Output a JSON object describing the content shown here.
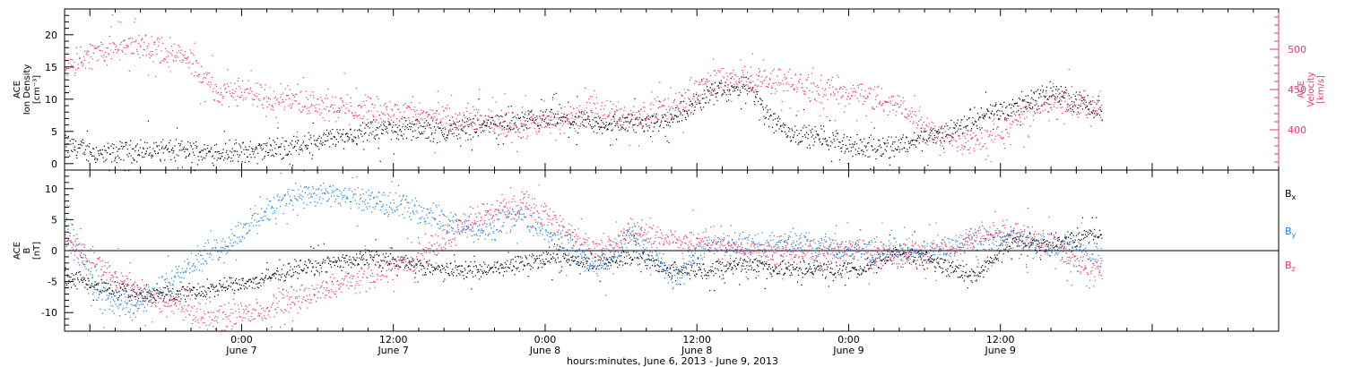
{
  "colors": {
    "black": "#000000",
    "red": "#e8386a",
    "blue": "#1a7fd8",
    "bg": "#ffffff"
  },
  "chart_data": [
    {
      "type": "scatter",
      "title": "",
      "ylabel_left": [
        "ACE",
        "Ion Density",
        "[cm⁻³]"
      ],
      "ylabel_right": [
        "ACE",
        "Velocity",
        "[km/s]"
      ],
      "ylim_left": [
        -1,
        24
      ],
      "ylim_right": [
        350,
        550
      ],
      "yticks_left": [
        0,
        5,
        10,
        15,
        20
      ],
      "yticks_right": [
        400,
        450,
        500
      ],
      "series": [
        {
          "color": "#000000",
          "axis": "left",
          "x": [
            0,
            3,
            6,
            9,
            12,
            15,
            18,
            21,
            24,
            27,
            30,
            33,
            36,
            39,
            42,
            45,
            48,
            51,
            54,
            57,
            60,
            63,
            66,
            69,
            72,
            75,
            78,
            81,
            82
          ],
          "y": [
            3,
            1.5,
            2.2,
            2,
            1.8,
            2,
            2.8,
            4,
            5,
            5.5,
            5,
            6,
            6.5,
            7,
            6,
            6.5,
            7,
            11,
            12,
            5,
            4,
            2.5,
            3,
            4.5,
            7,
            9,
            11,
            9,
            8
          ]
        },
        {
          "color": "#e8386a",
          "axis": "right",
          "x": [
            0,
            3,
            6,
            9,
            12,
            15,
            18,
            21,
            24,
            27,
            30,
            33,
            36,
            39,
            42,
            45,
            48,
            51,
            54,
            57,
            60,
            63,
            66,
            69,
            72,
            75,
            78,
            81,
            82
          ],
          "y": [
            480,
            500,
            505,
            495,
            450,
            445,
            440,
            430,
            425,
            420,
            415,
            410,
            405,
            410,
            425,
            415,
            430,
            460,
            465,
            460,
            450,
            445,
            430,
            395,
            385,
            410,
            440,
            430,
            425
          ]
        }
      ]
    },
    {
      "type": "scatter",
      "ylabel": [
        "ACE",
        "B",
        "[nT]"
      ],
      "ylim": [
        -13,
        13
      ],
      "yticks": [
        -10,
        -5,
        0,
        5,
        10
      ],
      "series": [
        {
          "name": "Bx",
          "label_main": "B",
          "label_sub": "x",
          "color": "#000000",
          "x": [
            0,
            3,
            6,
            9,
            12,
            15,
            18,
            21,
            24,
            27,
            30,
            33,
            36,
            39,
            42,
            45,
            48,
            51,
            54,
            57,
            60,
            63,
            66,
            69,
            72,
            75,
            78,
            81,
            82
          ],
          "y": [
            -4,
            -6,
            -7,
            -7,
            -6,
            -5,
            -3,
            -2,
            -1,
            -2,
            -3,
            -3,
            -2,
            -1,
            -2,
            -1,
            -3,
            -3,
            -2,
            -3,
            -3,
            -3,
            0,
            -2,
            -4,
            2,
            1,
            3,
            2
          ]
        },
        {
          "name": "By",
          "label_main": "B",
          "label_sub": "y",
          "color": "#1a7fd8",
          "x": [
            0,
            3,
            6,
            9,
            12,
            15,
            18,
            21,
            24,
            27,
            30,
            33,
            36,
            39,
            42,
            45,
            48,
            51,
            54,
            57,
            60,
            63,
            66,
            69,
            72,
            75,
            78,
            81,
            82
          ],
          "y": [
            5,
            -8,
            -9,
            -3,
            0,
            5,
            9,
            9,
            8,
            7,
            5,
            3,
            6,
            2,
            -3,
            3,
            -4,
            1,
            1,
            1,
            1,
            0,
            0,
            0,
            2,
            2,
            1,
            0,
            -2
          ]
        },
        {
          "name": "Bz",
          "label_main": "B",
          "label_sub": "z",
          "color": "#e8386a",
          "x": [
            0,
            3,
            6,
            9,
            12,
            15,
            18,
            21,
            24,
            27,
            30,
            33,
            36,
            39,
            42,
            45,
            48,
            51,
            54,
            57,
            60,
            63,
            66,
            69,
            72,
            75,
            78,
            81,
            82
          ],
          "y": [
            2,
            -3,
            -7,
            -9,
            -11,
            -10,
            -8,
            -6,
            -4,
            -2,
            2,
            6,
            8,
            4,
            0,
            3,
            2,
            1,
            0,
            0,
            0,
            0,
            -1,
            0,
            2,
            3,
            1,
            -3,
            -3
          ]
        }
      ]
    }
  ],
  "x_axis": {
    "tick_labels": [
      {
        "time": "0:00",
        "date": "June 7",
        "hours": 14
      },
      {
        "time": "12:00",
        "date": "June 7",
        "hours": 26
      },
      {
        "time": "0:00",
        "date": "June 8",
        "hours": 38
      },
      {
        "time": "12:00",
        "date": "June 8",
        "hours": 50
      },
      {
        "time": "0:00",
        "date": "June 9",
        "hours": 62
      },
      {
        "time": "12:00",
        "date": "June 9",
        "hours": 74
      }
    ],
    "label": "hours:minutes, June  6, 2013 - June  9, 2013",
    "xlim": [
      0,
      96
    ]
  }
}
